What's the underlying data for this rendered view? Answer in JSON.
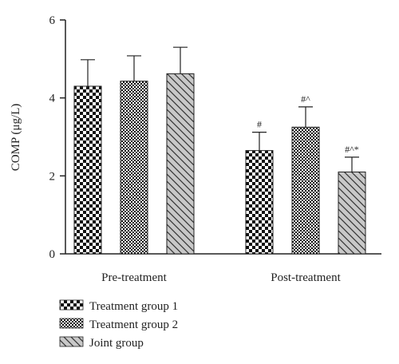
{
  "chart_data": {
    "type": "bar",
    "title": "",
    "xlabel": "",
    "ylabel": "COMP (μg/L)",
    "ylim": [
      0,
      6
    ],
    "yticks": [
      0,
      2,
      4,
      6
    ],
    "grid": false,
    "legend_position": "bottom-left",
    "categories": [
      "Pre-treatment",
      "Post-treatment"
    ],
    "series": [
      {
        "name": "Treatment group 1",
        "pattern": "checker",
        "values": [
          4.3,
          2.65
        ],
        "errors": [
          0.68,
          0.47
        ],
        "annotations": [
          "",
          "#"
        ]
      },
      {
        "name": "Treatment group 2",
        "pattern": "fine-checker",
        "values": [
          4.43,
          3.25
        ],
        "errors": [
          0.65,
          0.52
        ],
        "annotations": [
          "",
          "#^"
        ]
      },
      {
        "name": "Joint group",
        "pattern": "diagonal",
        "values": [
          4.62,
          2.1
        ],
        "errors": [
          0.68,
          0.38
        ],
        "annotations": [
          "",
          "#^*"
        ]
      }
    ]
  }
}
